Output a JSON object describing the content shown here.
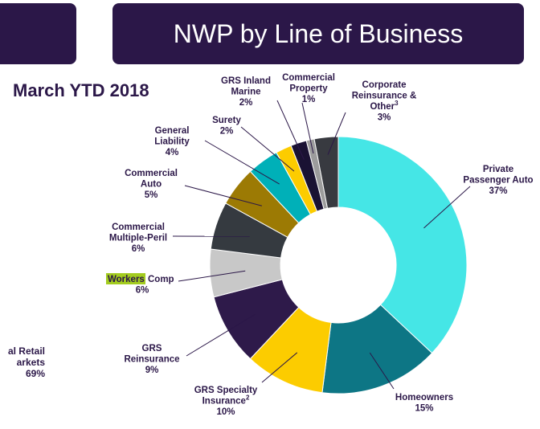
{
  "title": "NWP by Line of Business",
  "subtitle": "March YTD 2018",
  "side_label": [
    "al Retail",
    "arkets",
    "69%"
  ],
  "chart_data": {
    "type": "pie",
    "variant": "donut",
    "title": "NWP by Line of Business",
    "subtitle": "March YTD 2018",
    "categories": [
      "Private Passenger Auto",
      "Homeowners",
      "GRS Specialty Insurance",
      "GRS Reinsurance",
      "Workers Comp",
      "Commercial Multiple-Peril",
      "Commercial Auto",
      "General Liability",
      "Surety",
      "GRS Inland Marine",
      "Commercial Property",
      "Corporate Reinsurance & Other"
    ],
    "values": [
      37,
      15,
      10,
      9,
      6,
      6,
      5,
      4,
      2,
      2,
      1,
      3
    ],
    "value_labels": [
      "37%",
      "15%",
      "10%",
      "9%",
      "6%",
      "6%",
      "5%",
      "4%",
      "2%",
      "2%",
      "1%",
      "3%"
    ],
    "colors": [
      "#45e6e6",
      "#0d7685",
      "#fccc00",
      "#2e1a4a",
      "#c8c8c8",
      "#353a40",
      "#9c7a04",
      "#00b0b8",
      "#fccc00",
      "#1a1233",
      "#9c9c9c",
      "#383a40"
    ],
    "label_lines": [
      [
        "Private",
        "Passenger Auto",
        "37%"
      ],
      [
        "Homeowners",
        "15%"
      ],
      [
        "GRS Specialty",
        "Insurance",
        "10%"
      ],
      [
        "GRS",
        "Reinsurance",
        "9%"
      ],
      [
        "Workers",
        "Comp",
        "6%"
      ],
      [
        "Commercial",
        "Multiple-Peril",
        "6%"
      ],
      [
        "Commercial",
        "Auto",
        "5%"
      ],
      [
        "General",
        "Liability",
        "4%"
      ],
      [
        "Surety",
        "2%"
      ],
      [
        "GRS Inland",
        "Marine",
        "2%"
      ],
      [
        "Commercial",
        "Property",
        "1%"
      ],
      [
        "Corporate",
        "Reinsurance &",
        "Other",
        "3%"
      ]
    ],
    "superscripts": {
      "GRS Specialty Insurance": "2",
      "Corporate Reinsurance & Other": "3"
    },
    "highlight": {
      "text": "Workers",
      "color": "#a3cc1f"
    }
  }
}
